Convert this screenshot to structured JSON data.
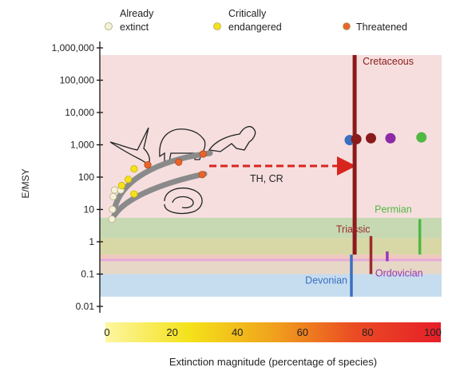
{
  "chart_data": {
    "type": "scatter",
    "title": "",
    "xlabel": "Extinction magnitude (percentage of species)",
    "ylabel": "E/MSY",
    "xlim": [
      0,
      100
    ],
    "ylim": [
      0.01,
      1000000
    ],
    "y_scale": "log",
    "x_ticks": [
      0,
      20,
      40,
      60,
      80,
      100
    ],
    "y_ticks": [
      {
        "value": 1000000,
        "label": "1,000,000"
      },
      {
        "value": 100000,
        "label": "100,000"
      },
      {
        "value": 10000,
        "label": "10,000"
      },
      {
        "value": 1000,
        "label": "1,000"
      },
      {
        "value": 100,
        "label": "100"
      },
      {
        "value": 10,
        "label": "10"
      },
      {
        "value": 1,
        "label": "1"
      },
      {
        "value": 0.1,
        "label": "0.1"
      },
      {
        "value": 0.01,
        "label": "0.01"
      }
    ],
    "legend": {
      "placement": "top",
      "entries": [
        {
          "line1": "Already",
          "line2": "extinct",
          "color": "#f4f2d8"
        },
        {
          "line1": "Critically",
          "line2": "endangered",
          "color": "#f4e21a"
        },
        {
          "line1": "",
          "line2": "Threatened",
          "color": "#e8642a"
        }
      ]
    },
    "already_extinct": [
      {
        "x": 1.5,
        "y": 5
      },
      {
        "x": 1.7,
        "y": 10
      },
      {
        "x": 1.9,
        "y": 25
      },
      {
        "x": 2.3,
        "y": 40
      },
      {
        "x": 4.2,
        "y": 40
      }
    ],
    "critically_endangered": [
      {
        "x": 4.5,
        "y": 55
      },
      {
        "x": 6.5,
        "y": 85
      },
      {
        "x": 8.3,
        "y": 180
      },
      {
        "x": 8.3,
        "y": 30
      }
    ],
    "threatened": [
      {
        "x": 12.5,
        "y": 240
      },
      {
        "x": 22,
        "y": 290
      },
      {
        "x": 29.5,
        "y": 520
      },
      {
        "x": 29.2,
        "y": 120
      }
    ],
    "annotation": "TH, CR",
    "mass_extinctions": [
      {
        "name": "Cretaceous",
        "x": 76,
        "y_top": 600000,
        "y_bottom": 0.4,
        "color": "#8b1a1a",
        "points": [
          {
            "x": 74.5,
            "y": 1400,
            "color": "#3a6fbf"
          },
          {
            "x": 76.5,
            "y": 1500,
            "color": "#8b1a1a"
          },
          {
            "x": 81,
            "y": 1600,
            "color": "#8b1a1a"
          },
          {
            "x": 87,
            "y": 1600,
            "color": "#8e2aa6"
          },
          {
            "x": 96.5,
            "y": 1700,
            "color": "#4fb843"
          }
        ]
      },
      {
        "name": "Permian",
        "x": 96,
        "y_top": 5,
        "y_bottom": 0.4,
        "color": "#4fb843"
      },
      {
        "name": "Triassic",
        "x": 81,
        "y_top": 1.5,
        "y_bottom": 0.1,
        "color": "#9b2b2b"
      },
      {
        "name": "Ordovician",
        "x": 86,
        "y_top": 0.5,
        "y_bottom": 0.25,
        "color": "#9a38b3"
      },
      {
        "name": "Devonian",
        "x": 75,
        "y_top": 0.4,
        "y_bottom": 0.02,
        "color": "#3a6fbf"
      }
    ],
    "background_bands": [
      {
        "y_from": 0.02,
        "y_to": 0.1,
        "color": "#c6dcef"
      },
      {
        "y_from": 0.1,
        "y_to": 0.25,
        "color": "#e7d7c7"
      },
      {
        "y_from": 0.25,
        "y_to": 0.3,
        "color": "#e3a9d6"
      },
      {
        "y_from": 0.3,
        "y_to": 0.4,
        "color": "#f0c8bf"
      },
      {
        "y_from": 0.4,
        "y_to": 1.3,
        "color": "#d8d7a6"
      },
      {
        "y_from": 1.3,
        "y_to": 5.5,
        "color": "#c6d9b2"
      },
      {
        "y_from": 5.5,
        "y_to": 600000,
        "color": "#f6dede"
      }
    ],
    "grid": false
  }
}
